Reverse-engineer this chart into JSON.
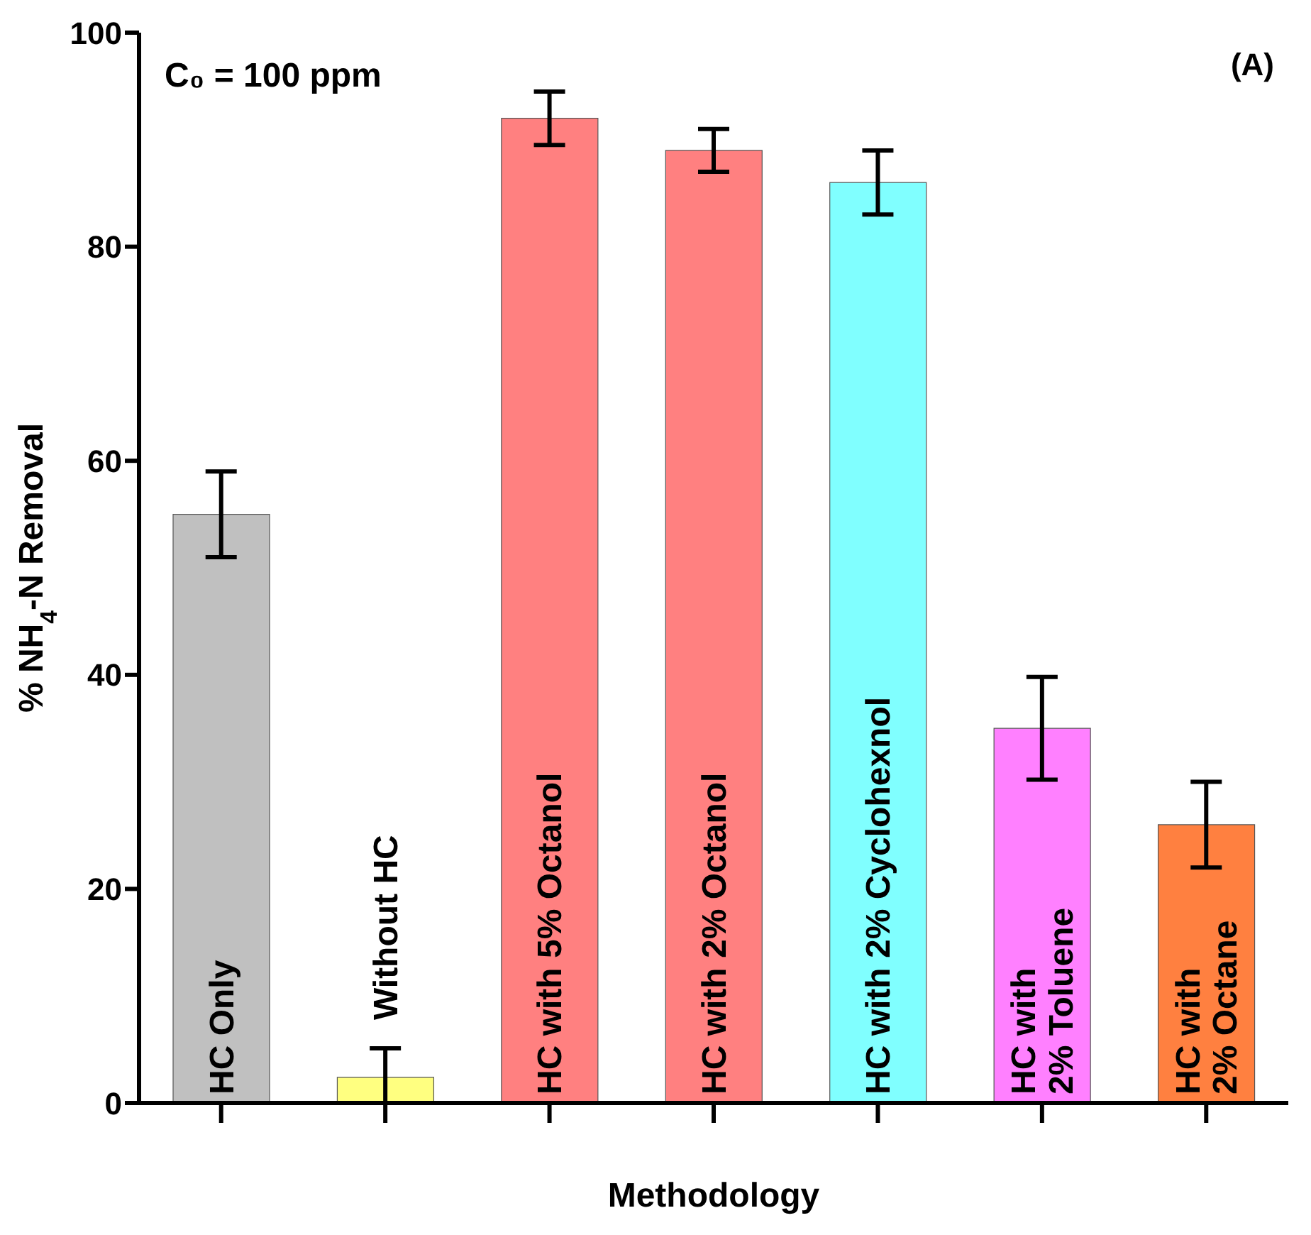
{
  "chart_data": {
    "type": "bar",
    "categories": [
      "HC Only",
      "Without HC",
      "HC with 5% Octanol",
      "HC with 2% Octanol",
      "HC with 2% Cyclohexnol",
      "HC with\n2% Toluene",
      "HC with\n2% Octane"
    ],
    "values": [
      55,
      2.4,
      92,
      89,
      86,
      35,
      26
    ],
    "errors": [
      4,
      [
        0,
        5.1
      ],
      2.5,
      2,
      3,
      4.8,
      4
    ],
    "colors": [
      "#c0c0c0",
      "#ffff80",
      "#ff8080",
      "#ff8080",
      "#80ffff",
      "#ff80ff",
      "#ff8040"
    ],
    "xlabel": "Methodology",
    "ylabel": "% NH$_{4}$-N Removal",
    "ylim": [
      0,
      100
    ],
    "yticks": [
      0,
      20,
      40,
      60,
      80,
      100
    ],
    "annotations": [
      "C₀ = 100 ppm",
      "(A)"
    ],
    "grid": false,
    "legend": false
  }
}
